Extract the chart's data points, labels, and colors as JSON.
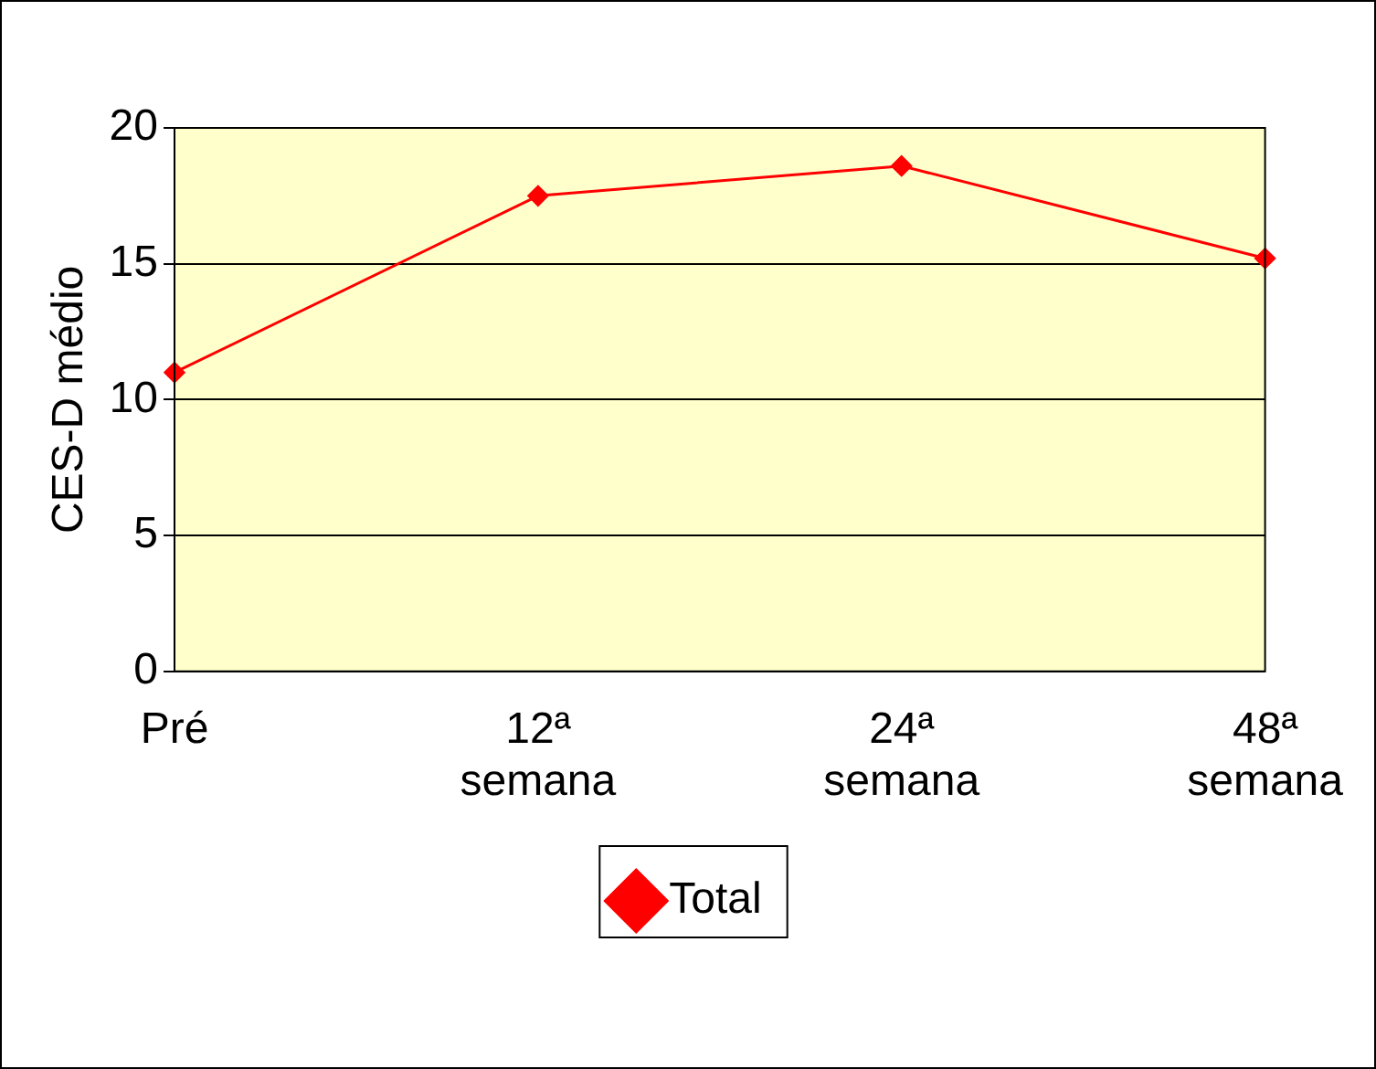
{
  "chart_data": {
    "type": "line",
    "ylabel": "CES-D médio",
    "categories": [
      "Pré",
      "12ª semana",
      "24ª semana",
      "48ª semana"
    ],
    "series": [
      {
        "name": "Total",
        "color": "#ff0000",
        "values": [
          11.0,
          17.5,
          18.6,
          15.2
        ]
      }
    ],
    "ylim": [
      0,
      20
    ],
    "yticks": [
      0,
      5,
      10,
      15,
      20
    ],
    "grid": "y",
    "legend": "bottom",
    "marker": "diamond",
    "line_style": "solid"
  }
}
